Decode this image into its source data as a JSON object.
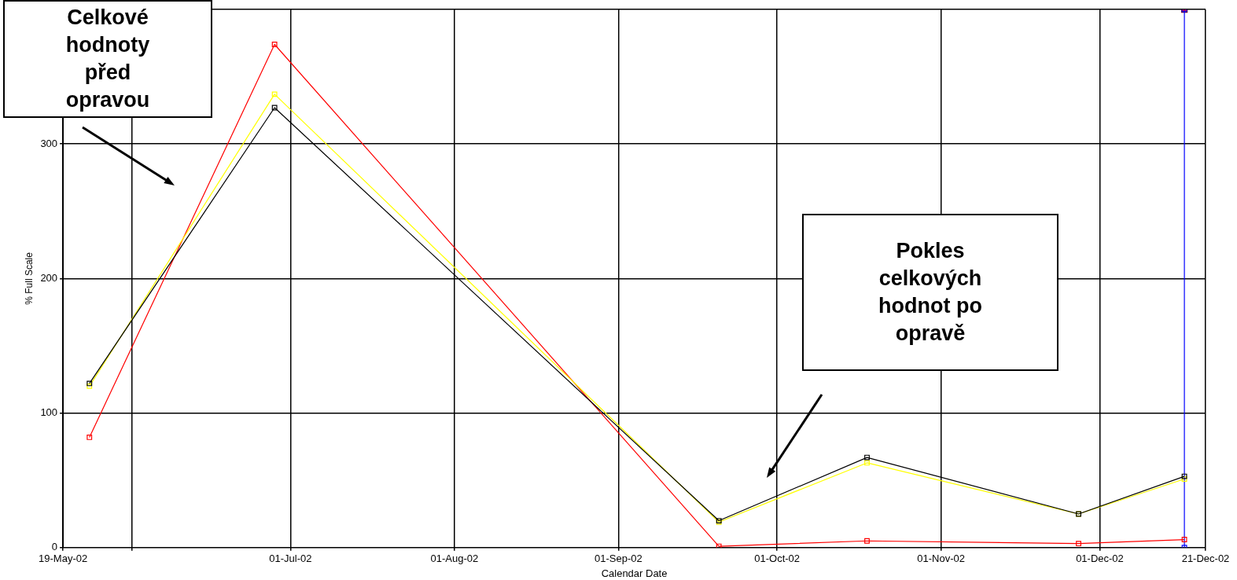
{
  "chart_data": {
    "type": "line",
    "xlabel": "Calendar Date",
    "ylabel": "% Full Scale",
    "annotations": [
      "Celkové hodnoty před opravou",
      "Pokles celkových hodnot po opravě"
    ],
    "x": [
      "2002-05-24",
      "2002-06-28",
      "2002-09-20",
      "2002-10-18",
      "2002-11-27",
      "2002-12-17"
    ],
    "series": [
      {
        "color": "#000000",
        "values": [
          122,
          327,
          20,
          67,
          25,
          53
        ]
      },
      {
        "color": "#ffff00",
        "values": [
          120,
          337,
          19,
          63,
          25,
          51
        ]
      },
      {
        "color": "#ff0000",
        "values": [
          82,
          374,
          1,
          5,
          3,
          6
        ]
      },
      {
        "color": "#0000ff",
        "x": [
          "2002-12-17",
          "2002-12-17"
        ],
        "values": [
          0,
          400
        ]
      },
      {
        "type": "scatter",
        "color": "#ff0000",
        "x": [
          "2002-12-17"
        ],
        "values": [
          400
        ]
      }
    ],
    "xlim": [
      "2002-05-19",
      "2002-12-21"
    ],
    "xticks": [
      {
        "value": "2002-05-19",
        "label": "19-May-02"
      },
      {
        "value": "2002-06-01",
        "label": null
      },
      {
        "value": "2002-07-01",
        "label": "01-Jul-02"
      },
      {
        "value": "2002-08-01",
        "label": "01-Aug-02"
      },
      {
        "value": "2002-09-01",
        "label": "01-Sep-02"
      },
      {
        "value": "2002-10-01",
        "label": "01-Oct-02"
      },
      {
        "value": "2002-11-01",
        "label": "01-Nov-02"
      },
      {
        "value": "2002-12-01",
        "label": "01-Dec-02"
      },
      {
        "value": "2002-12-21",
        "label": "21-Dec-02"
      }
    ],
    "ylim": [
      0,
      400
    ],
    "yticks": [
      0,
      100,
      200,
      300,
      {
        "value": 400,
        "label": null
      }
    ],
    "grid": true,
    "legend": false,
    "marker": "square",
    "line_style": "solid"
  }
}
